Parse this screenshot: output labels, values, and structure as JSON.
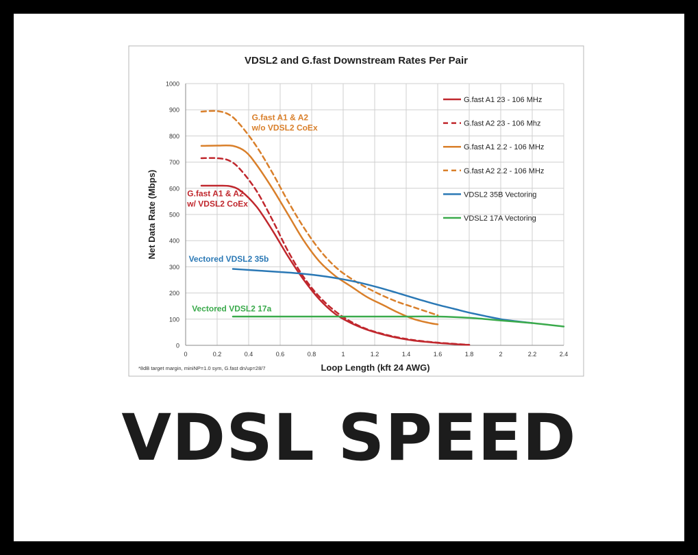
{
  "chart_data": {
    "type": "line",
    "title": "VDSL2 and G.fast Downstream Rates Per Pair",
    "xlabel": "Loop Length (kft 24 AWG)",
    "ylabel": "Net Data Rate (Mbps)",
    "xlim": [
      0,
      2.4
    ],
    "ylim": [
      0,
      1000
    ],
    "xticks": [
      "0",
      "0.2",
      "0.4",
      "0.6",
      "0.8",
      "1",
      "1.2",
      "1.4",
      "1.6",
      "1.8",
      "2",
      "2.2",
      "2.4"
    ],
    "yticks": [
      "0",
      "100",
      "200",
      "300",
      "400",
      "500",
      "600",
      "700",
      "800",
      "900",
      "1000"
    ],
    "grid": true,
    "legend_position": "right",
    "footnote": "*8dB target margin, miniNP=1.0 sym, G.fast dn/up=28/7",
    "series": [
      {
        "name": "G.fast A1 23 - 106 MHz",
        "color": "#c0272d",
        "dash": false,
        "x": [
          0.1,
          0.2,
          0.28,
          0.35,
          0.45,
          0.55,
          0.65,
          0.75,
          0.85,
          0.95,
          1.05,
          1.15,
          1.25,
          1.35,
          1.45,
          1.55,
          1.65,
          1.75,
          1.8
        ],
        "y": [
          610,
          610,
          608,
          590,
          530,
          440,
          340,
          250,
          175,
          120,
          85,
          60,
          42,
          28,
          18,
          12,
          7,
          3,
          2
        ]
      },
      {
        "name": "G.fast A2 23 - 106 Mhz",
        "color": "#c0272d",
        "dash": true,
        "x": [
          0.1,
          0.2,
          0.28,
          0.35,
          0.45,
          0.55,
          0.65,
          0.75,
          0.85,
          0.95,
          1.05,
          1.15,
          1.25,
          1.35,
          1.45,
          1.55,
          1.65,
          1.75,
          1.8
        ],
        "y": [
          715,
          715,
          705,
          670,
          590,
          480,
          360,
          260,
          185,
          130,
          90,
          62,
          44,
          30,
          20,
          13,
          8,
          4,
          2
        ]
      },
      {
        "name": "G.fast A1 2.2 - 106 MHz",
        "color": "#d97f2a",
        "dash": false,
        "x": [
          0.1,
          0.2,
          0.3,
          0.38,
          0.45,
          0.55,
          0.65,
          0.75,
          0.85,
          0.95,
          1.05,
          1.15,
          1.25,
          1.35,
          1.45,
          1.55,
          1.6
        ],
        "y": [
          762,
          763,
          762,
          740,
          690,
          600,
          500,
          400,
          320,
          265,
          225,
          185,
          155,
          125,
          100,
          85,
          80
        ]
      },
      {
        "name": "G.fast A2 2.2 - 106 MHz",
        "color": "#d97f2a",
        "dash": true,
        "x": [
          0.1,
          0.2,
          0.28,
          0.35,
          0.45,
          0.55,
          0.65,
          0.75,
          0.85,
          0.95,
          1.05,
          1.15,
          1.25,
          1.35,
          1.45,
          1.55,
          1.6
        ],
        "y": [
          893,
          895,
          880,
          840,
          760,
          660,
          550,
          450,
          365,
          300,
          255,
          220,
          190,
          165,
          145,
          125,
          115
        ]
      },
      {
        "name": "VDSL2 35B Vectoring",
        "color": "#2a78b5",
        "dash": false,
        "x": [
          0.3,
          0.4,
          0.5,
          0.6,
          0.7,
          0.8,
          0.9,
          1.0,
          1.1,
          1.2,
          1.3,
          1.4,
          1.5,
          1.6,
          1.7,
          1.8,
          1.9,
          2.0,
          2.1,
          2.2
        ],
        "y": [
          292,
          288,
          284,
          280,
          276,
          270,
          262,
          252,
          240,
          225,
          208,
          190,
          172,
          155,
          140,
          125,
          112,
          100,
          92,
          85
        ]
      },
      {
        "name": "VDSL2 17A Vectoring",
        "color": "#3aaa4b",
        "dash": false,
        "x": [
          0.3,
          0.6,
          1.0,
          1.4,
          1.6,
          1.8,
          2.0,
          2.2,
          2.4
        ],
        "y": [
          110,
          110,
          110,
          110,
          110,
          105,
          95,
          85,
          72
        ]
      }
    ],
    "annotations": [
      {
        "line1": "G.fast A1 & A2",
        "line2": "w/o VDSL2 CoEx",
        "color": "#d97f2a",
        "x": 0.42,
        "y": 860
      },
      {
        "line1": "G.fast A1 & A2",
        "line2": "w/ VDSL2 CoEx",
        "color": "#c0272d",
        "x": 0.01,
        "y": 570
      },
      {
        "line1": "Vectored VDSL2 35b",
        "line2": "",
        "color": "#2a78b5",
        "x": 0.02,
        "y": 320
      },
      {
        "line1": "Vectored VDSL2 17a",
        "line2": "",
        "color": "#3aaa4b",
        "x": 0.04,
        "y": 130
      }
    ]
  },
  "banner": {
    "text": "VDSL SPEED"
  }
}
